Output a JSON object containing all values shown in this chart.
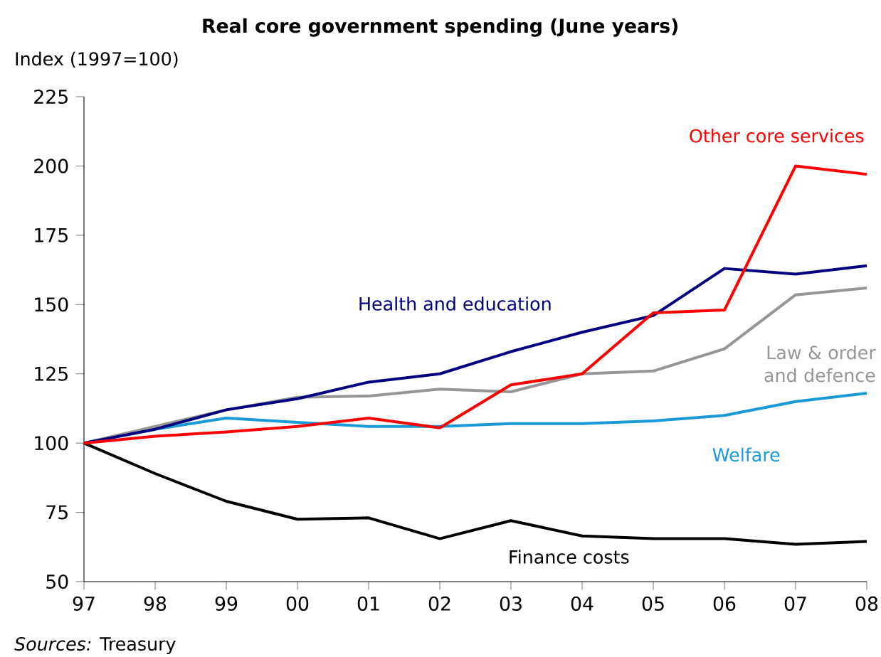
{
  "chart_data": {
    "type": "line",
    "title": "Real core government spending (June years)",
    "ylabel": "Index (1997=100)",
    "categories": [
      "97",
      "98",
      "99",
      "00",
      "01",
      "02",
      "03",
      "04",
      "05",
      "06",
      "07",
      "08"
    ],
    "series": [
      {
        "name": "Finance costs",
        "color": "#000000",
        "values": [
          100,
          89,
          79,
          72.5,
          73,
          65.5,
          72,
          66.5,
          65.5,
          65.5,
          63.5,
          64.5
        ]
      },
      {
        "name": "Welfare",
        "color": "#1a9ad6",
        "values": [
          100,
          105,
          109,
          107.5,
          106,
          106,
          107,
          107,
          108,
          110,
          115,
          118
        ]
      },
      {
        "name": "Law & order and defence",
        "color": "#969696",
        "values": [
          100,
          106,
          112,
          116.5,
          117,
          119.5,
          118.5,
          125,
          126,
          134,
          153.5,
          156
        ]
      },
      {
        "name": "Health and education",
        "color": "#000080",
        "values": [
          100,
          105,
          112,
          116,
          122,
          125,
          133,
          140,
          146,
          163,
          161,
          164
        ]
      },
      {
        "name": "Other core services",
        "color": "#ff0000",
        "values": [
          100,
          102.5,
          104,
          106,
          109,
          105.5,
          121,
          125,
          147,
          148,
          200,
          197
        ]
      }
    ],
    "ylim": [
      50,
      225
    ],
    "yticks": [
      50,
      75,
      100,
      125,
      150,
      175,
      200,
      225
    ],
    "grid": false,
    "legend": false,
    "marker": "none",
    "line_style": "solid",
    "annotations": [
      "*Sources:* Treasury"
    ]
  }
}
